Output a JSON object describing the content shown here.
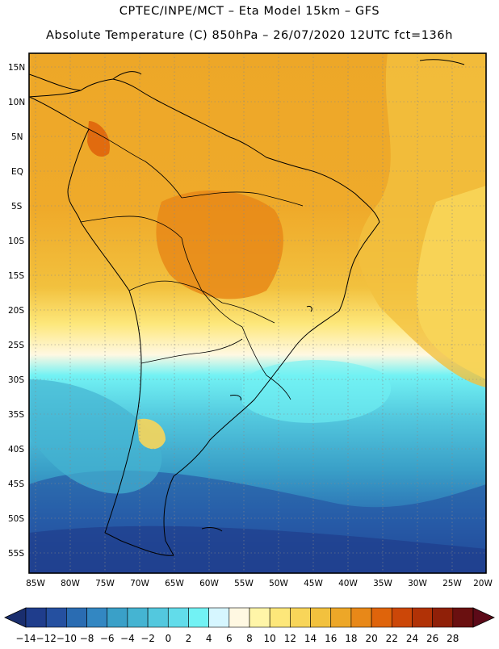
{
  "header": {
    "line1": "CPTEC/INPE/MCT –  Eta Model 15km – GFS",
    "line2": "Absolute Temperature (C) 850hPa – 26/07/2020 12UTC fct=136h"
  },
  "map": {
    "lat_labels": [
      "15N",
      "10N",
      "5N",
      "EQ",
      "5S",
      "10S",
      "15S",
      "20S",
      "25S",
      "30S",
      "35S",
      "40S",
      "45S",
      "50S",
      "55S"
    ],
    "lon_labels": [
      "85W",
      "80W",
      "75W",
      "70W",
      "65W",
      "60W",
      "55W",
      "50W",
      "45W",
      "40W",
      "35W",
      "30W",
      "25W",
      "20W"
    ]
  },
  "colorbar": {
    "labels": [
      "−14",
      "−12",
      "−10",
      "−8",
      "−6",
      "−4",
      "−2",
      "0",
      "2",
      "4",
      "6",
      "8",
      "10",
      "12",
      "14",
      "16",
      "18",
      "20",
      "22",
      "24",
      "26",
      "28"
    ],
    "colors": [
      "#1f3d8c",
      "#2550a0",
      "#2a6cb2",
      "#3387c2",
      "#3aa0c8",
      "#45b4d2",
      "#53c8de",
      "#62dcea",
      "#72f2f4",
      "#d6f6ff",
      "#fff8e2",
      "#fff5a8",
      "#fde77a",
      "#f8d559",
      "#f2c13e",
      "#eda728",
      "#e88818",
      "#df640b",
      "#cc4708",
      "#b13206",
      "#902008",
      "#6a1010"
    ],
    "under_color": "#1a2e6e",
    "over_color": "#5c0a18"
  }
}
